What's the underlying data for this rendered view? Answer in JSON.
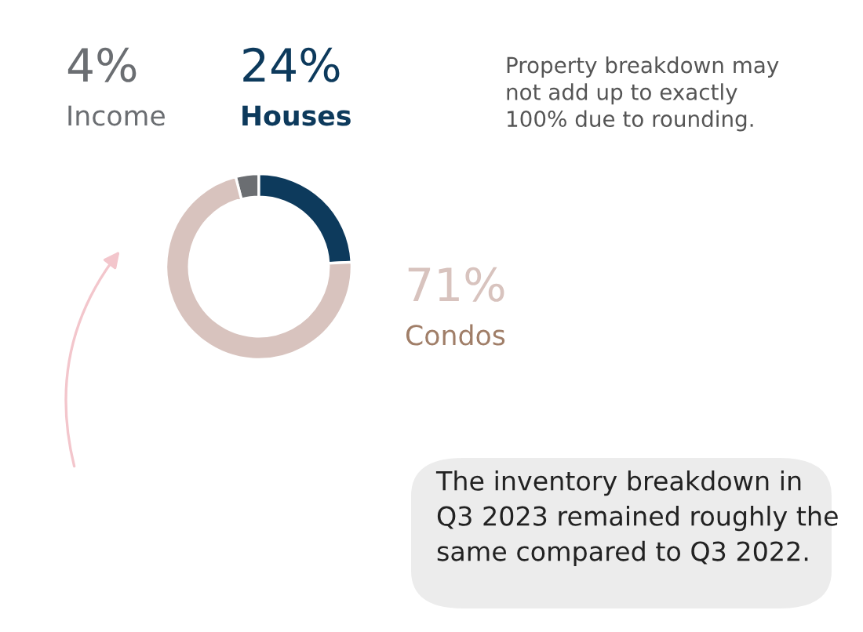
{
  "chart_data": {
    "type": "donut",
    "categories": [
      "Income",
      "Houses",
      "Condos"
    ],
    "values": [
      4,
      24,
      71
    ],
    "colors": [
      "#6b6e72",
      "#0d3a5c",
      "#d8c3be"
    ],
    "value_labels": [
      "4%",
      "24%",
      "71%"
    ],
    "legend": false,
    "annotations": [
      "Property breakdown may\nnot add up to exactly\n100% due to rounding.",
      "The inventory breakdown in\nQ3 2023 remained roughly the\nsame compared to Q3 2022."
    ]
  }
}
